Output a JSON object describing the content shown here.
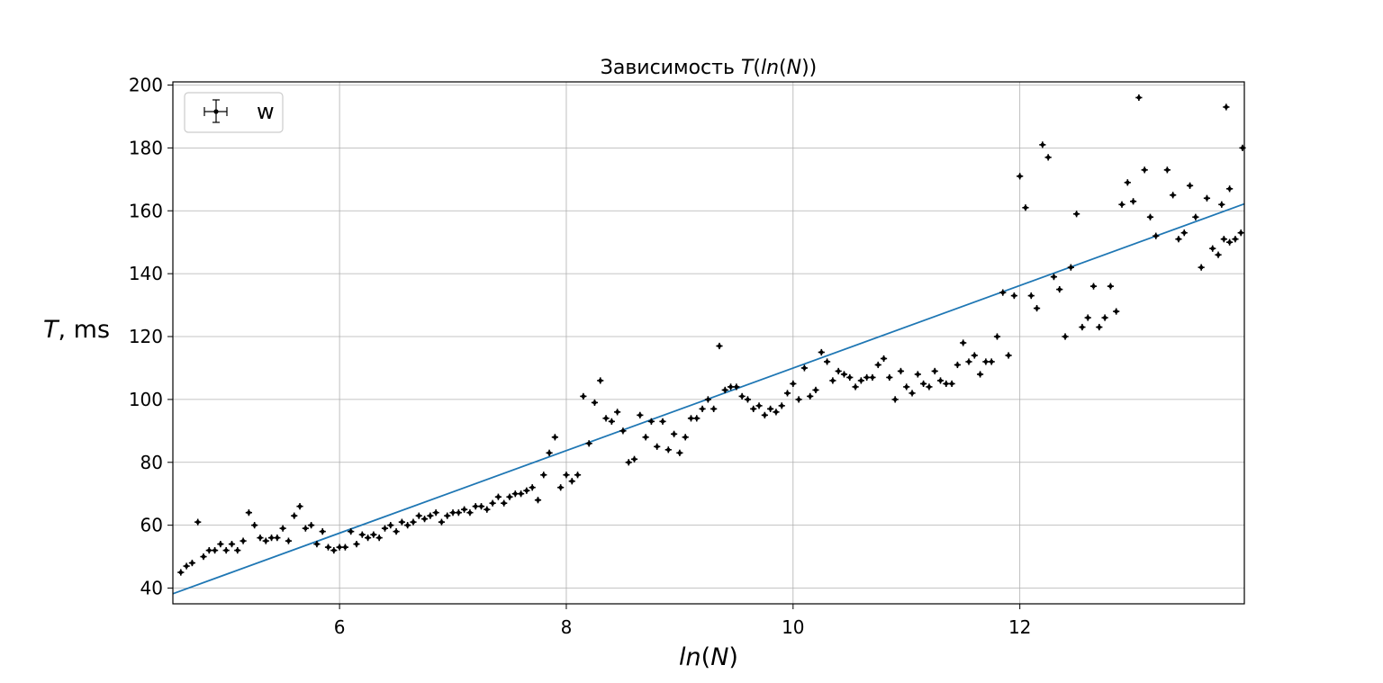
{
  "chart_data": {
    "type": "scatter",
    "title_prefix": "Зависимость ",
    "title_var": "T",
    "title_open": "(",
    "title_inner": "ln",
    "title_inner_paren_open": "(",
    "title_inner_var": "N",
    "title_close": "))",
    "ylabel_var": "T",
    "ylabel_unit": ", ms",
    "xlabel_fn": "ln",
    "xlabel_open": "(",
    "xlabel_var": "N",
    "xlabel_close": ")",
    "legend_label": "w",
    "legend_placement": "upper-left",
    "grid": true,
    "xlim": [
      4.53,
      13.98
    ],
    "ylim": [
      35,
      201
    ],
    "xticks": [
      6,
      8,
      10,
      12
    ],
    "yticks": [
      40,
      60,
      80,
      100,
      120,
      140,
      160,
      180,
      200
    ],
    "fit_line": {
      "x": [
        4.53,
        13.98
      ],
      "y": [
        38.2,
        162.2
      ],
      "color": "#1f77b4"
    },
    "marker_color": "#000000",
    "points": [
      [
        4.6,
        45
      ],
      [
        4.65,
        47
      ],
      [
        4.7,
        48
      ],
      [
        4.75,
        61
      ],
      [
        4.8,
        50
      ],
      [
        4.85,
        52
      ],
      [
        4.9,
        52
      ],
      [
        4.95,
        54
      ],
      [
        5.0,
        52
      ],
      [
        5.05,
        54
      ],
      [
        5.1,
        52
      ],
      [
        5.15,
        55
      ],
      [
        5.2,
        64
      ],
      [
        5.25,
        60
      ],
      [
        5.3,
        56
      ],
      [
        5.35,
        55
      ],
      [
        5.4,
        56
      ],
      [
        5.45,
        56
      ],
      [
        5.5,
        59
      ],
      [
        5.55,
        55
      ],
      [
        5.6,
        63
      ],
      [
        5.65,
        66
      ],
      [
        5.7,
        59
      ],
      [
        5.75,
        60
      ],
      [
        5.8,
        54
      ],
      [
        5.85,
        58
      ],
      [
        5.9,
        53
      ],
      [
        5.95,
        52
      ],
      [
        6.0,
        53
      ],
      [
        6.05,
        53
      ],
      [
        6.1,
        58
      ],
      [
        6.15,
        54
      ],
      [
        6.2,
        57
      ],
      [
        6.25,
        56
      ],
      [
        6.3,
        57
      ],
      [
        6.35,
        56
      ],
      [
        6.4,
        59
      ],
      [
        6.45,
        60
      ],
      [
        6.5,
        58
      ],
      [
        6.55,
        61
      ],
      [
        6.6,
        60
      ],
      [
        6.65,
        61
      ],
      [
        6.7,
        63
      ],
      [
        6.75,
        62
      ],
      [
        6.8,
        63
      ],
      [
        6.85,
        64
      ],
      [
        6.9,
        61
      ],
      [
        6.95,
        63
      ],
      [
        7.0,
        64
      ],
      [
        7.05,
        64
      ],
      [
        7.1,
        65
      ],
      [
        7.15,
        64
      ],
      [
        7.2,
        66
      ],
      [
        7.25,
        66
      ],
      [
        7.3,
        65
      ],
      [
        7.35,
        67
      ],
      [
        7.4,
        69
      ],
      [
        7.45,
        67
      ],
      [
        7.5,
        69
      ],
      [
        7.55,
        70
      ],
      [
        7.6,
        70
      ],
      [
        7.65,
        71
      ],
      [
        7.7,
        72
      ],
      [
        7.75,
        68
      ],
      [
        7.8,
        76
      ],
      [
        7.85,
        83
      ],
      [
        7.9,
        88
      ],
      [
        7.95,
        72
      ],
      [
        8.0,
        76
      ],
      [
        8.05,
        74
      ],
      [
        8.1,
        76
      ],
      [
        8.15,
        101
      ],
      [
        8.2,
        86
      ],
      [
        8.25,
        99
      ],
      [
        8.3,
        106
      ],
      [
        8.35,
        94
      ],
      [
        8.4,
        93
      ],
      [
        8.45,
        96
      ],
      [
        8.5,
        90
      ],
      [
        8.55,
        80
      ],
      [
        8.6,
        81
      ],
      [
        8.65,
        95
      ],
      [
        8.7,
        88
      ],
      [
        8.75,
        93
      ],
      [
        8.8,
        85
      ],
      [
        8.85,
        93
      ],
      [
        8.9,
        84
      ],
      [
        8.95,
        89
      ],
      [
        9.0,
        83
      ],
      [
        9.05,
        88
      ],
      [
        9.1,
        94
      ],
      [
        9.15,
        94
      ],
      [
        9.2,
        97
      ],
      [
        9.25,
        100
      ],
      [
        9.3,
        97
      ],
      [
        9.35,
        117
      ],
      [
        9.4,
        103
      ],
      [
        9.45,
        104
      ],
      [
        9.5,
        104
      ],
      [
        9.55,
        101
      ],
      [
        9.6,
        100
      ],
      [
        9.65,
        97
      ],
      [
        9.7,
        98
      ],
      [
        9.75,
        95
      ],
      [
        9.8,
        97
      ],
      [
        9.85,
        96
      ],
      [
        9.9,
        98
      ],
      [
        9.95,
        102
      ],
      [
        10.0,
        105
      ],
      [
        10.05,
        100
      ],
      [
        10.1,
        110
      ],
      [
        10.15,
        101
      ],
      [
        10.2,
        103
      ],
      [
        10.25,
        115
      ],
      [
        10.3,
        112
      ],
      [
        10.35,
        106
      ],
      [
        10.4,
        109
      ],
      [
        10.45,
        108
      ],
      [
        10.5,
        107
      ],
      [
        10.55,
        104
      ],
      [
        10.6,
        106
      ],
      [
        10.65,
        107
      ],
      [
        10.7,
        107
      ],
      [
        10.75,
        111
      ],
      [
        10.8,
        113
      ],
      [
        10.85,
        107
      ],
      [
        10.9,
        100
      ],
      [
        10.95,
        109
      ],
      [
        11.0,
        104
      ],
      [
        11.05,
        102
      ],
      [
        11.1,
        108
      ],
      [
        11.15,
        105
      ],
      [
        11.2,
        104
      ],
      [
        11.25,
        109
      ],
      [
        11.3,
        106
      ],
      [
        11.35,
        105
      ],
      [
        11.4,
        105
      ],
      [
        11.45,
        111
      ],
      [
        11.5,
        118
      ],
      [
        11.55,
        112
      ],
      [
        11.6,
        114
      ],
      [
        11.65,
        108
      ],
      [
        11.7,
        112
      ],
      [
        11.75,
        112
      ],
      [
        11.8,
        120
      ],
      [
        11.85,
        134
      ],
      [
        11.9,
        114
      ],
      [
        11.95,
        133
      ],
      [
        12.0,
        171
      ],
      [
        12.05,
        161
      ],
      [
        12.1,
        133
      ],
      [
        12.15,
        129
      ],
      [
        12.2,
        181
      ],
      [
        12.25,
        177
      ],
      [
        12.3,
        139
      ],
      [
        12.35,
        135
      ],
      [
        12.4,
        120
      ],
      [
        12.45,
        142
      ],
      [
        12.5,
        159
      ],
      [
        12.55,
        123
      ],
      [
        12.6,
        126
      ],
      [
        12.65,
        136
      ],
      [
        12.7,
        123
      ],
      [
        12.75,
        126
      ],
      [
        12.8,
        136
      ],
      [
        12.85,
        128
      ],
      [
        12.9,
        162
      ],
      [
        12.95,
        169
      ],
      [
        13.0,
        163
      ],
      [
        13.05,
        196
      ],
      [
        13.1,
        173
      ],
      [
        13.15,
        158
      ],
      [
        13.2,
        152
      ],
      [
        13.3,
        173
      ],
      [
        13.35,
        165
      ],
      [
        13.4,
        151
      ],
      [
        13.45,
        153
      ],
      [
        13.5,
        168
      ],
      [
        13.55,
        158
      ],
      [
        13.6,
        142
      ],
      [
        13.65,
        164
      ],
      [
        13.7,
        148
      ],
      [
        13.75,
        146
      ],
      [
        13.8,
        151
      ],
      [
        13.85,
        150
      ],
      [
        13.9,
        151
      ],
      [
        13.95,
        153
      ],
      [
        13.97,
        180
      ]
    ],
    "points_overflow": [
      [
        14.0,
        162
      ],
      [
        14.05,
        193
      ],
      [
        14.1,
        167
      ]
    ]
  }
}
